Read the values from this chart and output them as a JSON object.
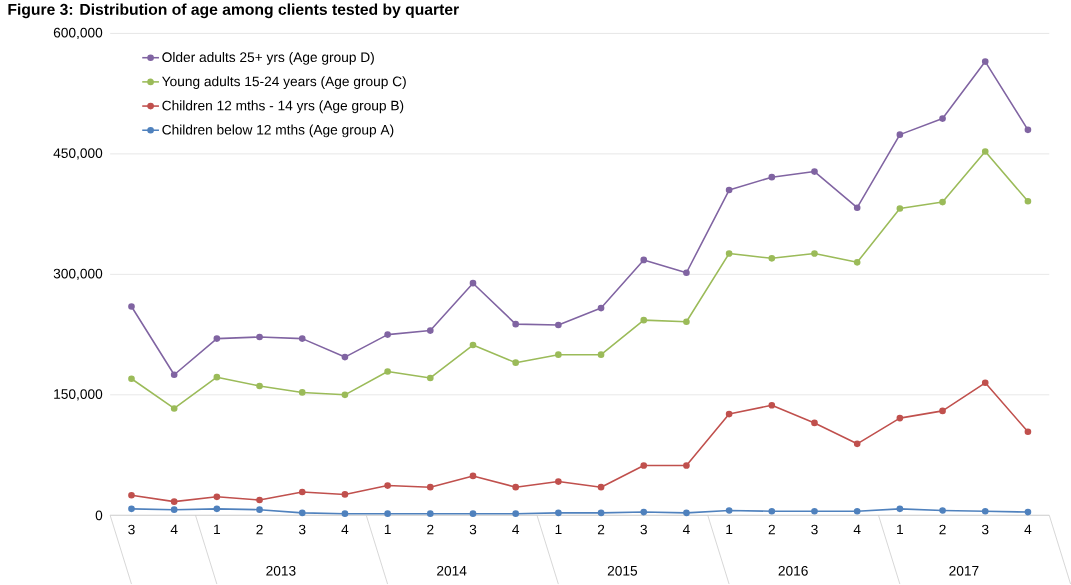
{
  "chart_data": {
    "type": "line",
    "title": "Figure 3: Distribution of age among clients tested by quarter",
    "categories": [
      "3",
      "4",
      "1",
      "2",
      "3",
      "4",
      "1",
      "2",
      "3",
      "4",
      "1",
      "2",
      "3",
      "4",
      "1",
      "2",
      "3",
      "4",
      "1",
      "2",
      "3",
      "4"
    ],
    "annotations": [
      "2013",
      "2014",
      "2015",
      "2016",
      "2017"
    ],
    "series": [
      {
        "name": "Older adults 25+ yrs (Age group D)",
        "color": "#8064a2",
        "values": [
          260000,
          175000,
          220000,
          222000,
          220000,
          197000,
          225000,
          230000,
          289000,
          238000,
          237000,
          258000,
          318000,
          302000,
          405000,
          421000,
          428000,
          383000,
          474000,
          494000,
          565000,
          480000
        ]
      },
      {
        "name": "Young adults 15-24 years (Age group C)",
        "color": "#9bbb59",
        "values": [
          170000,
          133000,
          172000,
          161000,
          153000,
          150000,
          179000,
          171000,
          212000,
          190000,
          200000,
          200000,
          243000,
          241000,
          326000,
          320000,
          326000,
          315000,
          382000,
          390000,
          453000,
          391000
        ]
      },
      {
        "name": "Children 12 mths - 14 yrs (Age group B)",
        "color": "#c0504d",
        "values": [
          25000,
          17000,
          23000,
          19000,
          29000,
          26000,
          37000,
          35000,
          49000,
          35000,
          42000,
          35000,
          62000,
          62000,
          126000,
          137000,
          115000,
          89000,
          121000,
          130000,
          165000,
          104000
        ]
      },
      {
        "name": "Children below 12 mths (Age group A)",
        "color": "#4f81bd",
        "values": [
          8000,
          7000,
          8000,
          7000,
          3000,
          2000,
          2000,
          2000,
          2000,
          2000,
          3000,
          3000,
          4000,
          3000,
          6000,
          5000,
          5000,
          5000,
          8000,
          6000,
          5000,
          4000
        ]
      }
    ],
    "ylim": [
      0,
      600000
    ],
    "yticks": [
      0,
      {
        "value": 150000,
        "label": "150,000"
      },
      {
        "value": 300000,
        "label": "300,000"
      },
      {
        "value": 450000,
        "label": "450,000"
      },
      {
        "value": 600000,
        "label": "600,000"
      }
    ],
    "grid": "y",
    "legend": "top left",
    "marker": "circle",
    "line_style": "solid"
  }
}
